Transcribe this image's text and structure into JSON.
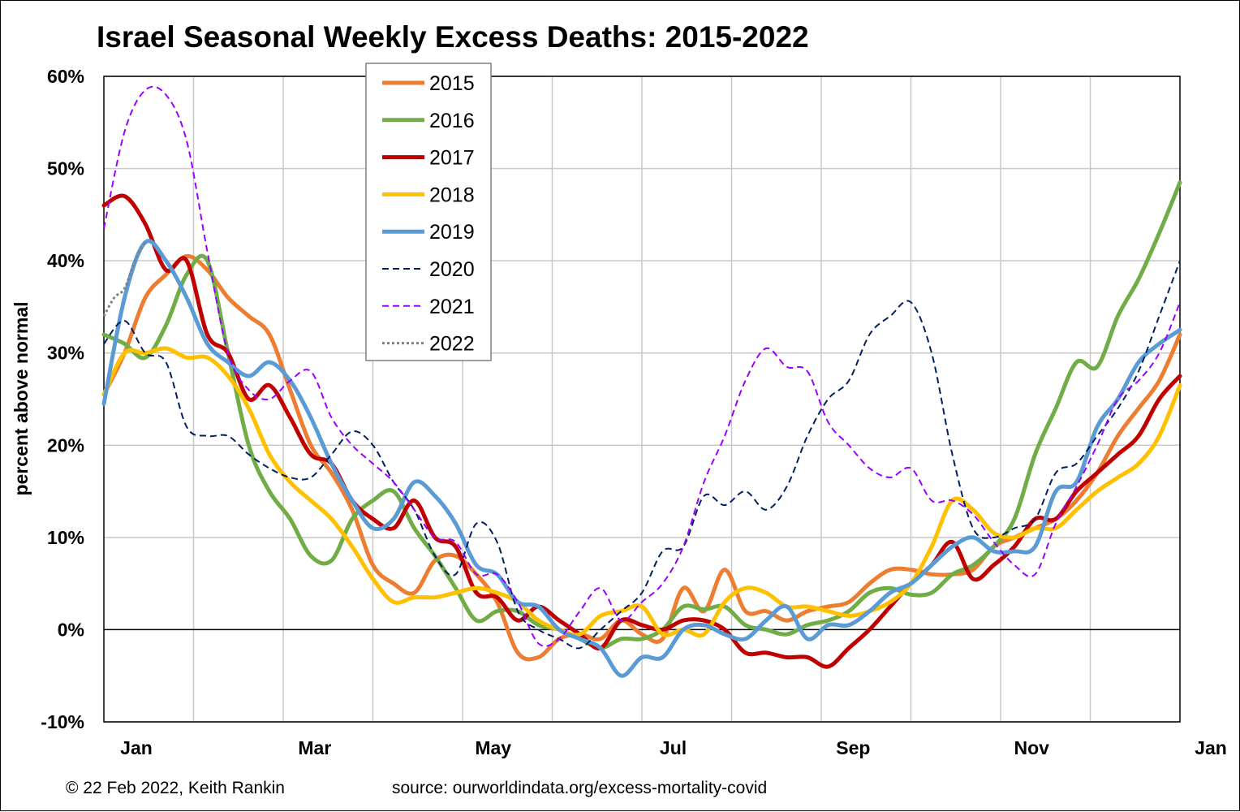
{
  "chart_data": {
    "type": "line",
    "title": "Israel Seasonal Weekly Excess Deaths: 2015-2022",
    "ylabel": "percent above normal",
    "xlabel": "",
    "ylim": [
      -10,
      60
    ],
    "xlim": [
      0,
      52
    ],
    "y_ticks": [
      60,
      50,
      40,
      30,
      20,
      10,
      0,
      -10
    ],
    "y_tick_labels": [
      "60%",
      "50%",
      "40%",
      "30%",
      "20%",
      "10%",
      "0%",
      "-10%"
    ],
    "x_ticks": [
      {
        "label": "Jan",
        "x": 0
      },
      {
        "label": "Mar",
        "x": 8.7
      },
      {
        "label": "May",
        "x": 17.4
      },
      {
        "label": "Jul",
        "x": 26.1
      },
      {
        "label": "Sep",
        "x": 34.8
      },
      {
        "label": "Nov",
        "x": 43.5
      },
      {
        "label": "Jan",
        "x": 52
      }
    ],
    "grid": true,
    "legend_position": "top-center",
    "series": [
      {
        "name": "2015",
        "color": "#ED7D31",
        "style": "solid",
        "width": 5,
        "x": [
          0,
          1,
          2,
          3,
          4,
          5,
          6,
          7,
          8,
          9,
          10,
          11,
          12,
          13,
          14,
          15,
          16,
          17,
          18,
          19,
          20,
          21,
          22,
          23,
          24,
          25,
          26,
          27,
          28,
          29,
          30,
          31,
          32,
          33,
          34,
          35,
          36,
          37,
          38,
          39,
          40,
          41,
          42,
          43,
          44,
          45,
          46,
          47,
          48,
          49,
          50,
          51,
          52
        ],
        "y": [
          25.5,
          30,
          36,
          38.5,
          40.5,
          39,
          36,
          34,
          32,
          26,
          20,
          17,
          13,
          7,
          5,
          4,
          7.5,
          8,
          6,
          3,
          -2.5,
          -3,
          -1,
          -0.5,
          -1,
          1,
          -0.5,
          -1,
          4.5,
          2,
          6.5,
          2,
          2,
          1,
          2,
          2.5,
          3,
          5,
          6.5,
          6.5,
          6,
          6,
          6.5,
          9,
          10,
          11,
          12,
          14,
          17,
          21,
          24,
          27,
          32
        ]
      },
      {
        "name": "2016",
        "color": "#70AD47",
        "style": "solid",
        "width": 5,
        "x": [
          0,
          1,
          2,
          3,
          4,
          5,
          6,
          7,
          8,
          9,
          10,
          11,
          12,
          13,
          14,
          15,
          16,
          17,
          18,
          19,
          20,
          21,
          22,
          23,
          24,
          25,
          26,
          27,
          28,
          29,
          30,
          31,
          32,
          33,
          34,
          35,
          36,
          37,
          38,
          39,
          40,
          41,
          42,
          43,
          44,
          45,
          46,
          47,
          48,
          49,
          50,
          51,
          52
        ],
        "y": [
          32,
          31,
          29.5,
          33,
          38.5,
          40,
          30,
          20,
          15,
          12,
          8,
          7.5,
          12,
          14,
          15,
          11,
          8,
          4.5,
          1,
          2,
          2,
          0.5,
          0,
          -1,
          -2,
          -1,
          -1,
          0,
          2.5,
          2.2,
          2.5,
          0.5,
          0,
          -0.5,
          0.5,
          1,
          2,
          4,
          4.5,
          3.8,
          4,
          6,
          7,
          9,
          12,
          19,
          24,
          29,
          28.5,
          34,
          38,
          43,
          48.5
        ]
      },
      {
        "name": "2017",
        "color": "#C00000",
        "style": "solid",
        "width": 5,
        "x": [
          0,
          1,
          2,
          3,
          4,
          5,
          6,
          7,
          8,
          9,
          10,
          11,
          12,
          13,
          14,
          15,
          16,
          17,
          18,
          19,
          20,
          21,
          22,
          23,
          24,
          25,
          26,
          27,
          28,
          29,
          30,
          31,
          32,
          33,
          34,
          35,
          36,
          37,
          38,
          39,
          40,
          41,
          42,
          43,
          44,
          45,
          46,
          47,
          48,
          49,
          50,
          51,
          52
        ],
        "y": [
          46,
          47,
          44,
          39,
          40,
          32,
          30,
          25,
          26.5,
          23,
          19,
          18,
          14,
          12,
          11,
          14,
          10,
          9,
          4,
          3.5,
          1,
          2.5,
          1,
          -0.5,
          -2,
          1,
          0.5,
          0,
          1,
          1,
          0,
          -2.5,
          -2.5,
          -3,
          -3,
          -4,
          -2,
          0,
          2.5,
          5,
          7,
          9.5,
          5.5,
          7,
          9,
          12,
          12,
          15,
          17,
          19,
          21,
          25,
          27.5
        ]
      },
      {
        "name": "2018",
        "color": "#FFC000",
        "style": "solid",
        "width": 5,
        "x": [
          0,
          1,
          2,
          3,
          4,
          5,
          6,
          7,
          8,
          9,
          10,
          11,
          12,
          13,
          14,
          15,
          16,
          17,
          18,
          19,
          20,
          21,
          22,
          23,
          24,
          25,
          26,
          27,
          28,
          29,
          30,
          31,
          32,
          33,
          34,
          35,
          36,
          37,
          38,
          39,
          40,
          41,
          42,
          43,
          44,
          45,
          46,
          47,
          48,
          49,
          50,
          51,
          52
        ],
        "y": [
          25.5,
          30,
          30,
          30.5,
          29.5,
          29.5,
          27.5,
          24,
          19,
          16,
          14,
          12,
          9,
          5.5,
          3,
          3.5,
          3.5,
          4,
          4.5,
          4,
          3,
          1,
          0,
          -0.5,
          1.5,
          2,
          2.5,
          -0.5,
          0,
          -0.5,
          3,
          4.5,
          4,
          2.5,
          2.5,
          2,
          1.5,
          2,
          3,
          5,
          9,
          14,
          13,
          10.5,
          10,
          11,
          11,
          13,
          15,
          16.5,
          18,
          21,
          26.5
        ]
      },
      {
        "name": "2019",
        "color": "#5B9BD5",
        "style": "solid",
        "width": 5,
        "x": [
          0,
          1,
          2,
          3,
          4,
          5,
          6,
          7,
          8,
          9,
          10,
          11,
          12,
          13,
          14,
          15,
          16,
          17,
          18,
          19,
          20,
          21,
          22,
          23,
          24,
          25,
          26,
          27,
          28,
          29,
          30,
          31,
          32,
          33,
          34,
          35,
          36,
          37,
          38,
          39,
          40,
          41,
          42,
          43,
          44,
          45,
          46,
          47,
          48,
          49,
          50,
          51,
          52
        ],
        "y": [
          24.5,
          36,
          42,
          40,
          36,
          31,
          29,
          27.5,
          29,
          27,
          23,
          18,
          14,
          11,
          12,
          16,
          14.5,
          11.5,
          7,
          6,
          3,
          2.5,
          0,
          -1,
          -2,
          -5,
          -3,
          -3,
          0,
          0.5,
          -0.5,
          -1,
          1,
          2.5,
          -1,
          0.5,
          0.5,
          2,
          4,
          5,
          7,
          9,
          10,
          8.5,
          8.5,
          9,
          15,
          16,
          22,
          25,
          29,
          31,
          32.5
        ]
      },
      {
        "name": "2020",
        "color": "#002060",
        "style": "dash",
        "width": 2,
        "x": [
          0,
          1,
          2,
          3,
          4,
          5,
          6,
          7,
          8,
          9,
          10,
          11,
          12,
          13,
          14,
          15,
          16,
          17,
          18,
          19,
          20,
          21,
          22,
          23,
          24,
          25,
          26,
          27,
          28,
          29,
          30,
          31,
          32,
          33,
          34,
          35,
          36,
          37,
          38,
          39,
          40,
          41,
          42,
          43,
          44,
          45,
          46,
          47,
          48,
          49,
          50,
          51,
          52
        ],
        "y": [
          31,
          33.5,
          30,
          29,
          22,
          21,
          21,
          19,
          17.5,
          16.5,
          16.5,
          19,
          21.5,
          20,
          16,
          13,
          8,
          6,
          11.5,
          9.5,
          2,
          0,
          -1,
          -2,
          0,
          2,
          4,
          8.5,
          9,
          14.5,
          13.5,
          15,
          13,
          15.5,
          21,
          25,
          27,
          32,
          34,
          35.5,
          30,
          19,
          11,
          10,
          11,
          12,
          17,
          18,
          21,
          24,
          28,
          34,
          40
        ]
      },
      {
        "name": "2021",
        "color": "#9900FF",
        "style": "dash",
        "width": 2,
        "x": [
          0,
          1,
          2,
          3,
          4,
          5,
          6,
          7,
          8,
          9,
          10,
          11,
          12,
          13,
          14,
          15,
          16,
          17,
          18,
          19,
          20,
          21,
          22,
          23,
          24,
          25,
          26,
          27,
          28,
          29,
          30,
          31,
          32,
          33,
          34,
          35,
          36,
          37,
          38,
          39,
          40,
          41,
          42,
          43,
          44,
          45,
          46,
          47,
          48,
          49,
          50,
          51,
          52
        ],
        "y": [
          43.5,
          54,
          58.5,
          58,
          53,
          41,
          30,
          26,
          25,
          27,
          28,
          23,
          20,
          18,
          16,
          13,
          10,
          9.5,
          6,
          6,
          3,
          -1.5,
          -1,
          2,
          4.5,
          1,
          3,
          5,
          9,
          16,
          21,
          27,
          30.5,
          28.5,
          28,
          22.5,
          20,
          17.5,
          16.5,
          17.5,
          14,
          14,
          12.5,
          9.5,
          7,
          6,
          11.5,
          15.5,
          20,
          25,
          27,
          30,
          35.5
        ]
      },
      {
        "name": "2022",
        "color": "#808080",
        "style": "dot",
        "width": 3,
        "x": [
          0,
          0.5,
          1,
          1.5,
          2
        ],
        "y": [
          34,
          36,
          37,
          40,
          42
        ]
      }
    ]
  },
  "footer": {
    "copyright": "© 22 Feb 2022, Keith Rankin",
    "source": "source: ourworldindata.org/excess-mortality-covid"
  }
}
